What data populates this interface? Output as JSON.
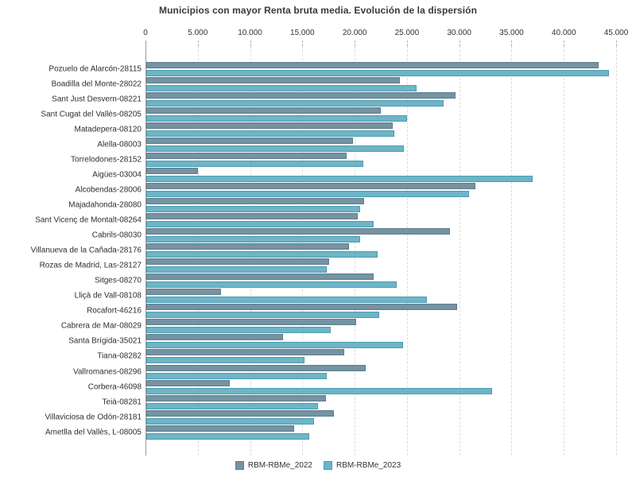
{
  "title": "Municipios con mayor Renta bruta media. Evolución de la dispersión",
  "chart_data": {
    "type": "bar",
    "orientation": "horizontal",
    "title": "Municipios con mayor Renta bruta media. Evolución de la dispersión",
    "xlabel": "",
    "ylabel": "",
    "xlim": [
      0,
      45000
    ],
    "grid": "vertical-dashed",
    "legend_position": "bottom-center",
    "x_ticks": [
      0,
      5000,
      10000,
      15000,
      20000,
      25000,
      30000,
      35000,
      40000,
      45000
    ],
    "x_tick_labels": [
      "0",
      "5.000",
      "10.000",
      "15.000",
      "20.000",
      "25.000",
      "30.000",
      "35.000",
      "40.000",
      "45.000"
    ],
    "categories": [
      "Pozuelo de Alarcón-28115",
      "Boadilla del Monte-28022",
      "Sant Just Desvern-08221",
      "Sant Cugat del Vallès-08205",
      "Matadepera-08120",
      "Alella-08003",
      "Torrelodones-28152",
      "Aigües-03004",
      "Alcobendas-28006",
      "Majadahonda-28080",
      "Sant Vicenç de Montalt-08264",
      "Cabrils-08030",
      "Villanueva de la Cañada-28176",
      "Rozas de Madrid, Las-28127",
      "Sitges-08270",
      "Lliçà de Vall-08108",
      "Rocafort-46216",
      "Cabrera de Mar-08029",
      "Santa Brígida-35021",
      "Tiana-08282",
      "Vallromanes-08296",
      "Corbera-46098",
      "Teià-08281",
      "Villaviciosa de Odón-28181",
      "Ametlla del Vallès, L-08005"
    ],
    "series": [
      {
        "name": "RBM-RBMe_2022",
        "color": "#7493A3",
        "border_color": "#5F7D8C",
        "values": [
          43100,
          24100,
          29400,
          22300,
          23400,
          19600,
          19000,
          4800,
          31300,
          20700,
          20100,
          28900,
          19200,
          17300,
          21600,
          7000,
          29600,
          19900,
          12900,
          18800,
          20800,
          7800,
          17000,
          17800,
          14000
        ]
      },
      {
        "name": "RBM-RBMe_2023",
        "color": "#6DB5C7",
        "border_color": "#4E9CB0",
        "values": [
          44100,
          25700,
          28300,
          24800,
          23600,
          24500,
          20600,
          36800,
          30700,
          20300,
          21600,
          20300,
          22000,
          17100,
          23800,
          26700,
          22100,
          17500,
          24400,
          15000,
          17100,
          32900,
          16300,
          15900,
          15400
        ]
      }
    ]
  },
  "legend": {
    "items": [
      "RBM-RBMe_2022",
      "RBM-RBMe_2023"
    ]
  }
}
